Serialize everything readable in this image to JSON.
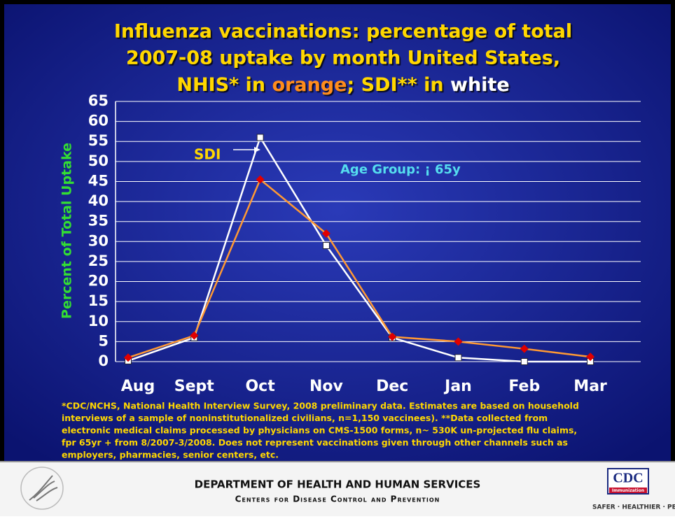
{
  "chart_data": {
    "type": "line",
    "title_lines": [
      "Influenza vaccinations: percentage of total",
      "2007-08 uptake by month United States,",
      [
        "NHIS* in ",
        "orange",
        "; SDI** in ",
        "white"
      ]
    ],
    "ylabel": "Percent of Total Uptake",
    "categories": [
      "Aug",
      "Sept",
      "Oct",
      "Nov",
      "Dec",
      "Jan",
      "Feb",
      "Mar"
    ],
    "series": [
      {
        "color": "#ffffff",
        "marker": "square",
        "marker_color": "#ffffff",
        "values": [
          0.2,
          6,
          56,
          29,
          6,
          1,
          0,
          0
        ]
      },
      {
        "color": "#ff9933",
        "marker": "diamond",
        "marker_color": "#e00000",
        "values": [
          1,
          6.5,
          45.5,
          32,
          6.2,
          5,
          3.2,
          1.2
        ]
      }
    ],
    "ylim": [
      0,
      65
    ],
    "yticks": [
      0,
      5,
      10,
      15,
      20,
      25,
      30,
      35,
      40,
      45,
      50,
      55,
      60,
      65
    ],
    "grid": true,
    "annotations": [
      "SDI",
      "Age Group: ¡ 65y"
    ],
    "footnote": [
      "*CDC/NCHS, National Health Interview Survey, 2008 preliminary data.  Estimates are based on household",
      "interviews of a sample of noninstitutionalized civilians, n=1,150 vaccinees). **Data collected from",
      "electronic medical claims processed by physicians on CMS-1500 forms, n~ 530K un-projected flu claims,",
      "fpr 65yr + from 8/2007-3/2008. Does not represent vaccinations given through other channels such as",
      "employers, pharmacies, senior centers, etc."
    ]
  },
  "footer": {
    "department": "DEPARTMENT OF HEALTH AND HUMAN SERVICES",
    "centers": "Centers for Disease Control and Prevention",
    "logo": "CDC",
    "logo_sub": "Immunization",
    "slogan": "SAFER · HEALTHIER · PEOPL"
  }
}
